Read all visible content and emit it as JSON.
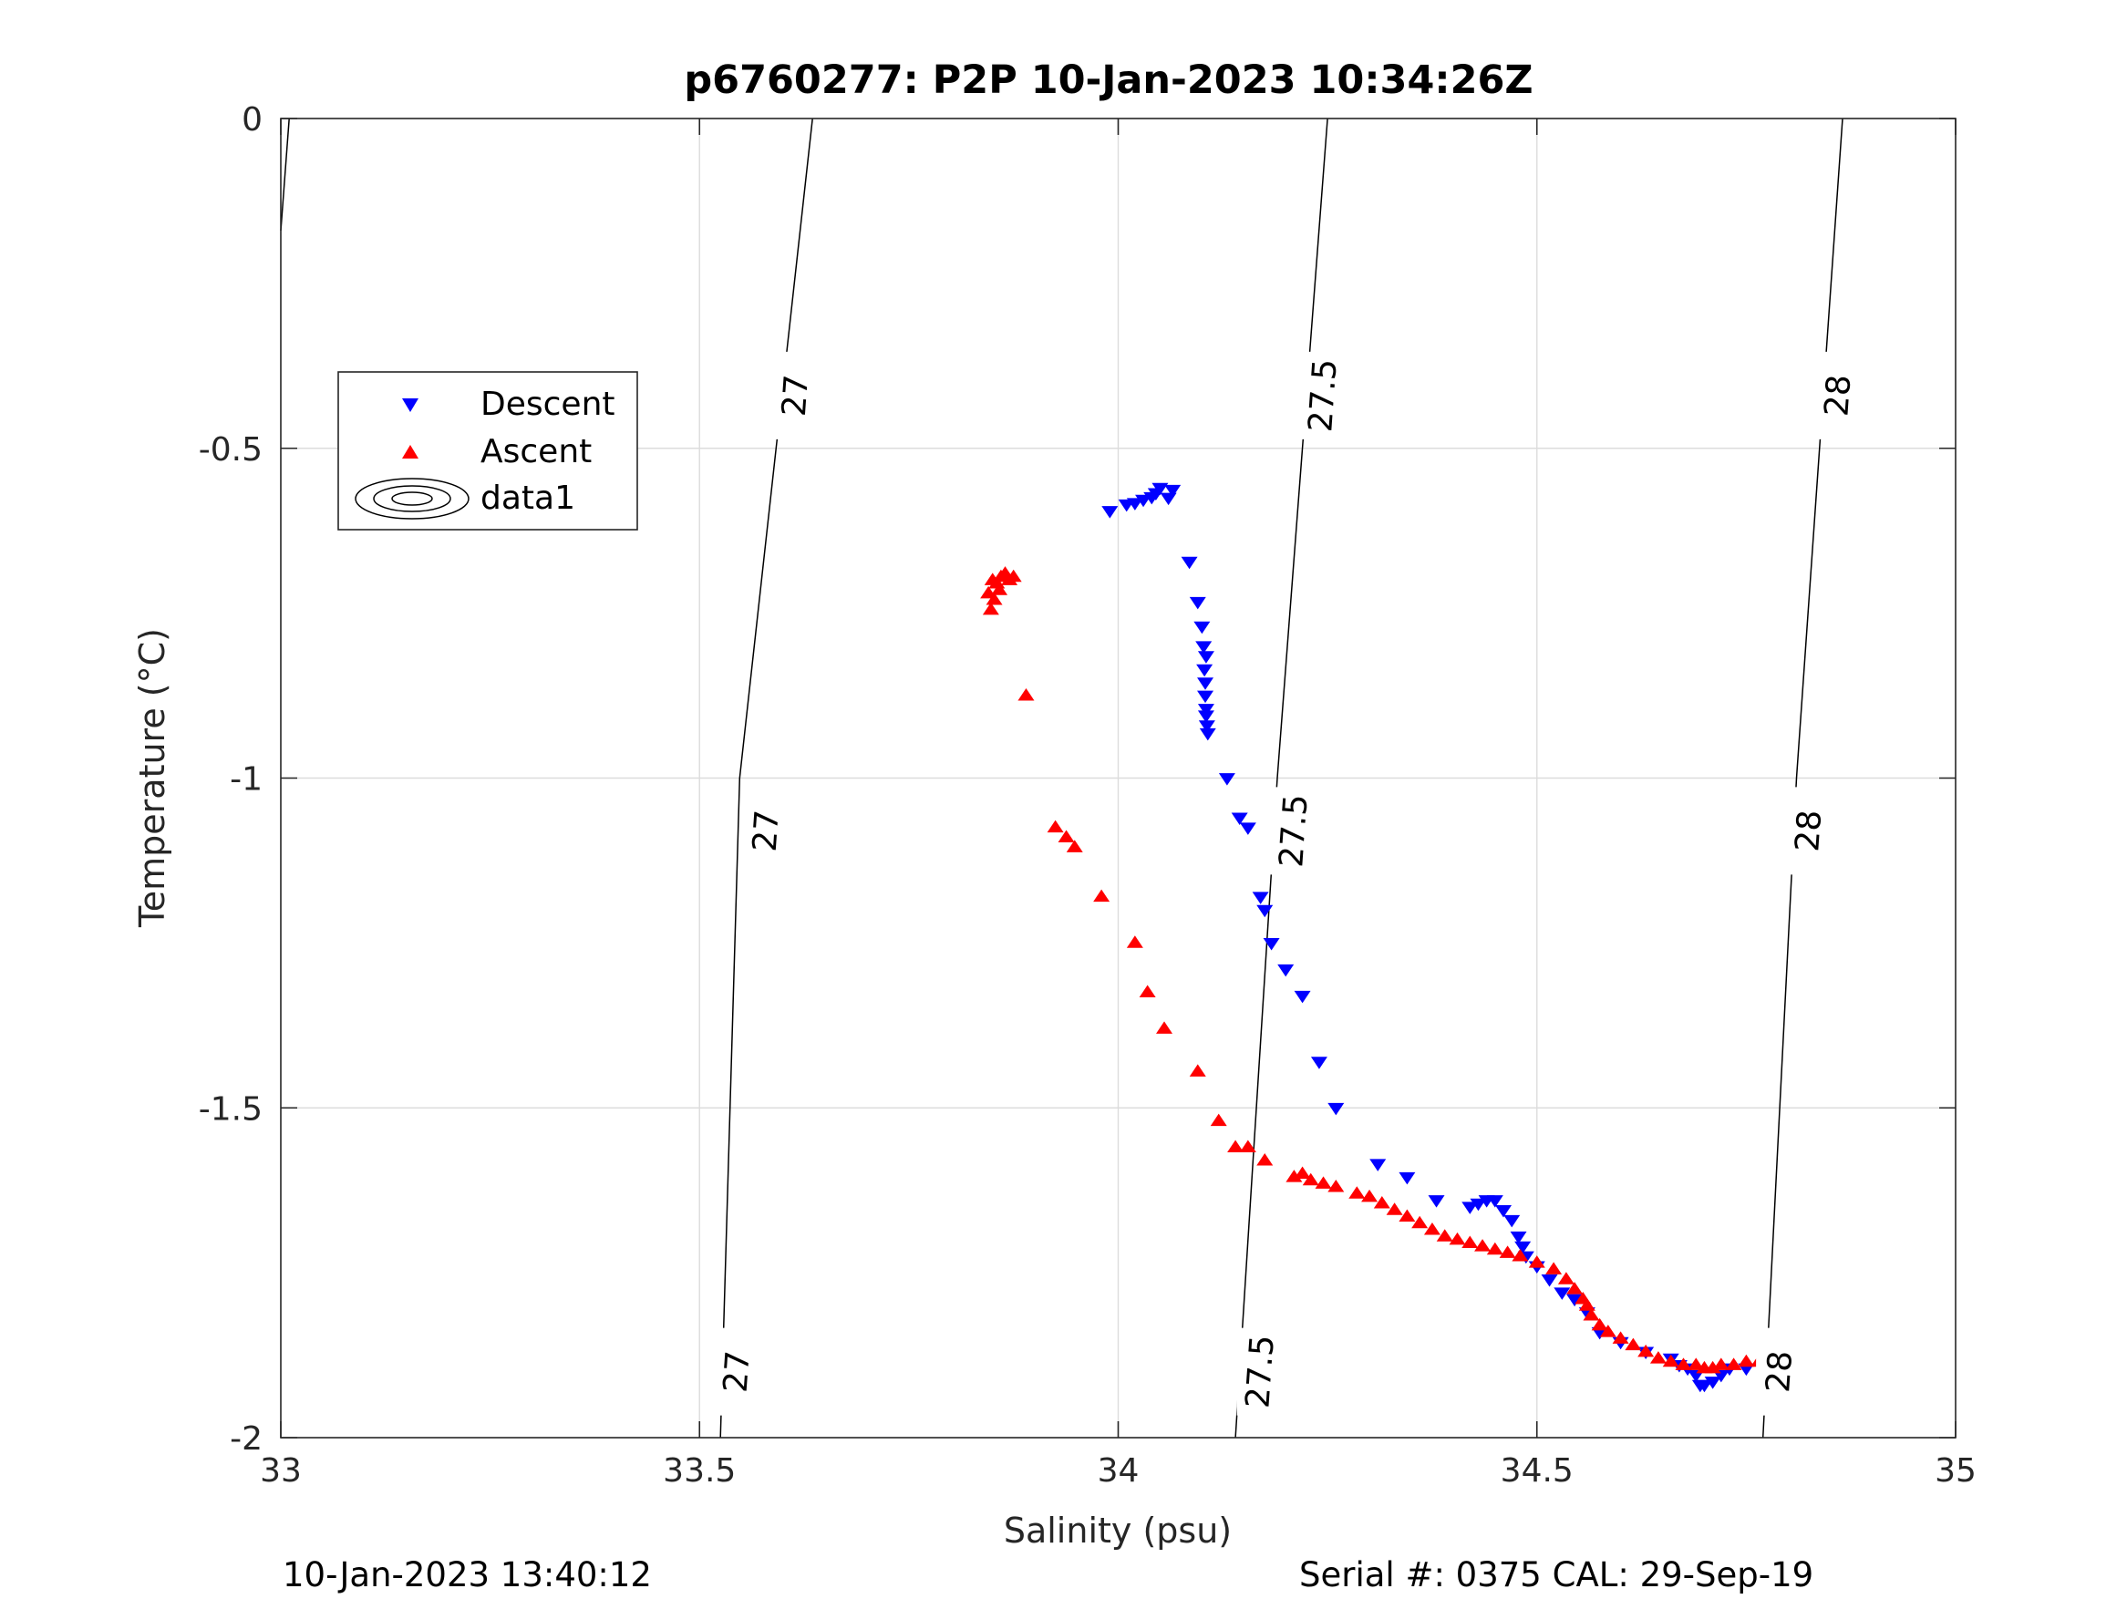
{
  "title": "p6760277: P2P 10-Jan-2023 10:34:26Z",
  "footer": {
    "timestamp": "10-Jan-2023 13:40:12",
    "serial_cal": "Serial #: 0375  CAL: 29-Sep-19"
  },
  "colors": {
    "descent": "#0000ff",
    "ascent": "#ff0000",
    "contour": "#000000",
    "grid": "#dcdcdc",
    "axes": "#262626"
  },
  "chart_data": {
    "type": "scatter",
    "title": "p6760277: P2P 10-Jan-2023 10:34:26Z",
    "xlabel": "Salinity (psu)",
    "ylabel": "Temperature (°C)",
    "xlim": [
      33,
      35
    ],
    "ylim": [
      -2,
      0
    ],
    "xticks": [
      33,
      33.5,
      34,
      34.5,
      35
    ],
    "yticks": [
      -2,
      -1.5,
      -1,
      -0.5,
      0
    ],
    "xtick_labels": [
      "33",
      "33.5",
      "34",
      "34.5",
      "35"
    ],
    "ytick_labels": [
      "-2",
      "-1.5",
      "-1",
      "-0.5",
      "0"
    ],
    "grid": true,
    "legend": {
      "placement": "upper-left",
      "entries": [
        {
          "label": "Descent",
          "marker": "triangle-down",
          "color": "#0000ff"
        },
        {
          "label": "Ascent",
          "marker": "triangle-up",
          "color": "#ff0000"
        },
        {
          "label": "data1",
          "marker": "contour",
          "color": "#000000"
        }
      ]
    },
    "series": [
      {
        "name": "Descent",
        "marker": "triangle-down",
        "color": "#0000ff",
        "points": [
          [
            33.99,
            -0.595
          ],
          [
            34.01,
            -0.585
          ],
          [
            34.02,
            -0.583
          ],
          [
            34.03,
            -0.578
          ],
          [
            34.04,
            -0.574
          ],
          [
            34.045,
            -0.568
          ],
          [
            34.05,
            -0.56
          ],
          [
            34.06,
            -0.575
          ],
          [
            34.065,
            -0.563
          ],
          [
            34.085,
            -0.672
          ],
          [
            34.095,
            -0.733
          ],
          [
            34.1,
            -0.77
          ],
          [
            34.102,
            -0.8
          ],
          [
            34.105,
            -0.815
          ],
          [
            34.103,
            -0.835
          ],
          [
            34.104,
            -0.855
          ],
          [
            34.104,
            -0.875
          ],
          [
            34.105,
            -0.895
          ],
          [
            34.105,
            -0.905
          ],
          [
            34.106,
            -0.92
          ],
          [
            34.107,
            -0.932
          ],
          [
            34.13,
            -1.0
          ],
          [
            34.145,
            -1.06
          ],
          [
            34.155,
            -1.075
          ],
          [
            34.17,
            -1.18
          ],
          [
            34.175,
            -1.2
          ],
          [
            34.183,
            -1.25
          ],
          [
            34.2,
            -1.29
          ],
          [
            34.22,
            -1.33
          ],
          [
            34.24,
            -1.43
          ],
          [
            34.26,
            -1.5
          ],
          [
            34.31,
            -1.585
          ],
          [
            34.345,
            -1.605
          ],
          [
            34.38,
            -1.64
          ],
          [
            34.42,
            -1.65
          ],
          [
            34.43,
            -1.645
          ],
          [
            34.44,
            -1.64
          ],
          [
            34.45,
            -1.64
          ],
          [
            34.46,
            -1.655
          ],
          [
            34.47,
            -1.67
          ],
          [
            34.478,
            -1.695
          ],
          [
            34.483,
            -1.71
          ],
          [
            34.487,
            -1.725
          ],
          [
            34.5,
            -1.74
          ],
          [
            34.515,
            -1.76
          ],
          [
            34.53,
            -1.78
          ],
          [
            34.545,
            -1.79
          ],
          [
            34.56,
            -1.81
          ],
          [
            34.575,
            -1.84
          ],
          [
            34.6,
            -1.855
          ],
          [
            34.63,
            -1.87
          ],
          [
            34.66,
            -1.88
          ],
          [
            34.67,
            -1.89
          ],
          [
            34.68,
            -1.895
          ],
          [
            34.69,
            -1.905
          ],
          [
            34.695,
            -1.92
          ],
          [
            34.7,
            -1.92
          ],
          [
            34.71,
            -1.915
          ],
          [
            34.72,
            -1.905
          ],
          [
            34.73,
            -1.895
          ],
          [
            34.75,
            -1.895
          ],
          [
            34.77,
            -1.89
          ]
        ]
      },
      {
        "name": "Ascent",
        "marker": "triangle-up",
        "color": "#ff0000",
        "points": [
          [
            33.845,
            -0.72
          ],
          [
            33.85,
            -0.7
          ],
          [
            33.855,
            -0.705
          ],
          [
            33.86,
            -0.695
          ],
          [
            33.865,
            -0.69
          ],
          [
            33.87,
            -0.7
          ],
          [
            33.875,
            -0.695
          ],
          [
            33.852,
            -0.73
          ],
          [
            33.858,
            -0.715
          ],
          [
            33.848,
            -0.745
          ],
          [
            33.89,
            -0.875
          ],
          [
            33.925,
            -1.075
          ],
          [
            33.938,
            -1.09
          ],
          [
            33.948,
            -1.105
          ],
          [
            33.98,
            -1.18
          ],
          [
            34.02,
            -1.25
          ],
          [
            34.035,
            -1.325
          ],
          [
            34.055,
            -1.38
          ],
          [
            34.095,
            -1.445
          ],
          [
            34.12,
            -1.52
          ],
          [
            34.14,
            -1.56
          ],
          [
            34.155,
            -1.56
          ],
          [
            34.175,
            -1.58
          ],
          [
            34.21,
            -1.605
          ],
          [
            34.22,
            -1.6
          ],
          [
            34.23,
            -1.61
          ],
          [
            34.245,
            -1.615
          ],
          [
            34.26,
            -1.62
          ],
          [
            34.285,
            -1.63
          ],
          [
            34.3,
            -1.635
          ],
          [
            34.315,
            -1.645
          ],
          [
            34.33,
            -1.655
          ],
          [
            34.345,
            -1.665
          ],
          [
            34.36,
            -1.675
          ],
          [
            34.375,
            -1.685
          ],
          [
            34.39,
            -1.695
          ],
          [
            34.405,
            -1.7
          ],
          [
            34.42,
            -1.705
          ],
          [
            34.435,
            -1.71
          ],
          [
            34.45,
            -1.715
          ],
          [
            34.465,
            -1.72
          ],
          [
            34.48,
            -1.725
          ],
          [
            34.5,
            -1.735
          ],
          [
            34.52,
            -1.745
          ],
          [
            34.535,
            -1.76
          ],
          [
            34.545,
            -1.775
          ],
          [
            34.555,
            -1.79
          ],
          [
            34.56,
            -1.8
          ],
          [
            34.565,
            -1.815
          ],
          [
            34.575,
            -1.83
          ],
          [
            34.585,
            -1.84
          ],
          [
            34.6,
            -1.85
          ],
          [
            34.615,
            -1.86
          ],
          [
            34.63,
            -1.87
          ],
          [
            34.645,
            -1.88
          ],
          [
            34.66,
            -1.885
          ],
          [
            34.675,
            -1.89
          ],
          [
            34.69,
            -1.89
          ],
          [
            34.7,
            -1.895
          ],
          [
            34.71,
            -1.895
          ],
          [
            34.72,
            -1.89
          ],
          [
            34.735,
            -1.89
          ],
          [
            34.75,
            -1.885
          ],
          [
            34.765,
            -1.885
          ],
          [
            34.775,
            -1.885
          ]
        ]
      }
    ],
    "contours": [
      {
        "level_label": "27",
        "line": [
          [
            33.635,
            0
          ],
          [
            33.548,
            -1.0
          ],
          [
            33.525,
            -2.0
          ]
        ],
        "labels": [
          [
            33.615,
            -0.42
          ],
          [
            33.58,
            -1.08
          ],
          [
            33.545,
            -1.9
          ]
        ]
      },
      {
        "level_label": "27.5",
        "line": [
          [
            34.25,
            0
          ],
          [
            34.19,
            -1.0
          ],
          [
            34.14,
            -2.0
          ]
        ],
        "labels": [
          [
            34.245,
            -0.42
          ],
          [
            34.21,
            -1.08
          ],
          [
            34.17,
            -1.9
          ]
        ]
      },
      {
        "level_label": "28",
        "line": [
          [
            34.865,
            0
          ],
          [
            34.81,
            -1.0
          ],
          [
            34.77,
            -2.0
          ]
        ],
        "labels": [
          [
            34.86,
            -0.42
          ],
          [
            34.825,
            -1.08
          ],
          [
            34.79,
            -1.9
          ]
        ]
      },
      {
        "level_label": "",
        "line": [
          [
            33.01,
            0
          ],
          [
            33.0,
            -0.17
          ]
        ],
        "labels": []
      }
    ]
  }
}
